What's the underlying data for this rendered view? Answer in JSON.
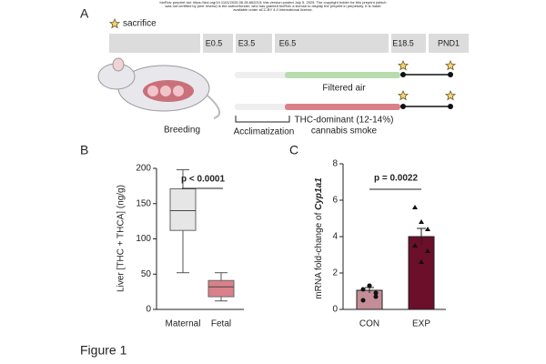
{
  "header": {
    "notice": [
      "bioRxiv preprint doi: https://doi.org/10.1101/2025.06.28.662215; this version posted July 5, 2025. The copyright holder for this preprint (which",
      "was not certified by peer review) is the author/funder, who has granted bioRxiv a license to display the preprint in perpetuity. It is made",
      "available under aCC-BY 4.0 International license."
    ]
  },
  "panel_a": {
    "label": "A",
    "legend": "sacrifice",
    "timeline": [
      "E0.5",
      "E3.5",
      "E6.5",
      "E18.5",
      "PND1"
    ],
    "breeding": "Breeding",
    "acclimatization": "Acclimatization",
    "groups": [
      "Filtered air",
      "THC-dominant (12-14%)",
      "cannabis smoke"
    ]
  },
  "panel_b": {
    "label": "B",
    "chart": {
      "type": "box",
      "y_label": "Liver [THC + THCA] (ng/g)",
      "categories": [
        "Maternal",
        "Fetal"
      ],
      "boxes": [
        {
          "min": 52,
          "q1": 112,
          "median": 140,
          "q3": 171,
          "max": 198
        },
        {
          "min": 12,
          "q1": 18,
          "median": 32,
          "q3": 41,
          "max": 52
        }
      ],
      "colors": [
        "#e6e6e6",
        "#d9818a"
      ],
      "ylim": [
        0,
        200
      ],
      "yticks": [
        0,
        50,
        100,
        150,
        200
      ],
      "annotation": "p < 0.0001"
    }
  },
  "panel_c": {
    "label": "C",
    "chart": {
      "type": "bar",
      "y_label": "mRNA fold-change of ",
      "y_label_gene": "Cyp1a1",
      "categories": [
        "CON",
        "EXP"
      ],
      "values": [
        1.05,
        4.0
      ],
      "errors": [
        0.15,
        0.45
      ],
      "points": [
        [
          1.1,
          1.3,
          0.9,
          0.5,
          1.3,
          0.7
        ],
        [
          5.6,
          4.8,
          4.4,
          3.5,
          2.6,
          3.2
        ]
      ],
      "colors": [
        "#c48d98",
        "#6b0f2a"
      ],
      "ylim": [
        0,
        8
      ],
      "yticks": [
        0,
        2,
        4,
        6,
        8
      ],
      "annotation": "p = 0.0022"
    }
  },
  "caption": "Figure 1"
}
